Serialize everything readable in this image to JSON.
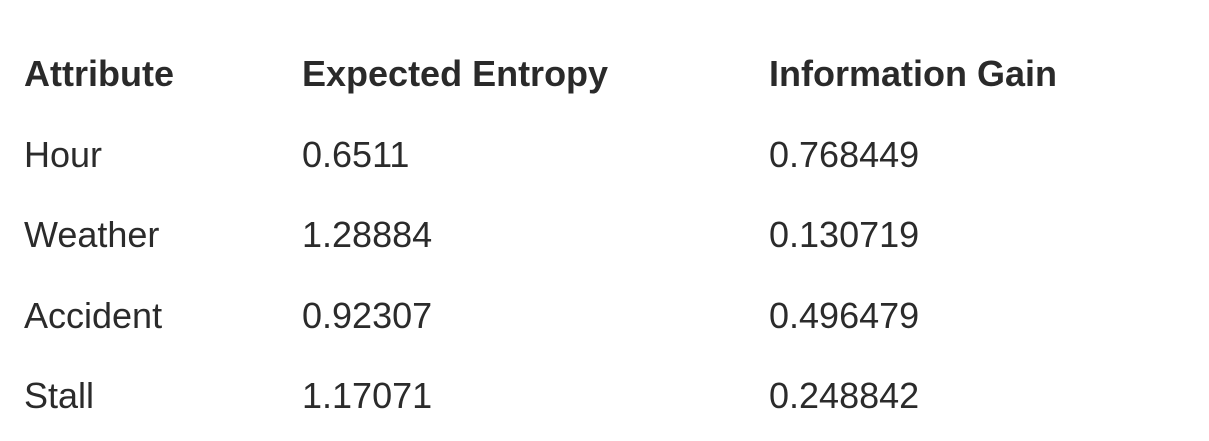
{
  "table": {
    "headers": [
      "Attribute",
      "Expected Entropy",
      "Information Gain"
    ],
    "rows": [
      [
        "Hour",
        "0.6511",
        "0.768449"
      ],
      [
        "Weather",
        "1.28884",
        "0.130719"
      ],
      [
        "Accident",
        "0.92307",
        "0.496479"
      ],
      [
        "Stall",
        "1.17071",
        "0.248842"
      ]
    ]
  }
}
